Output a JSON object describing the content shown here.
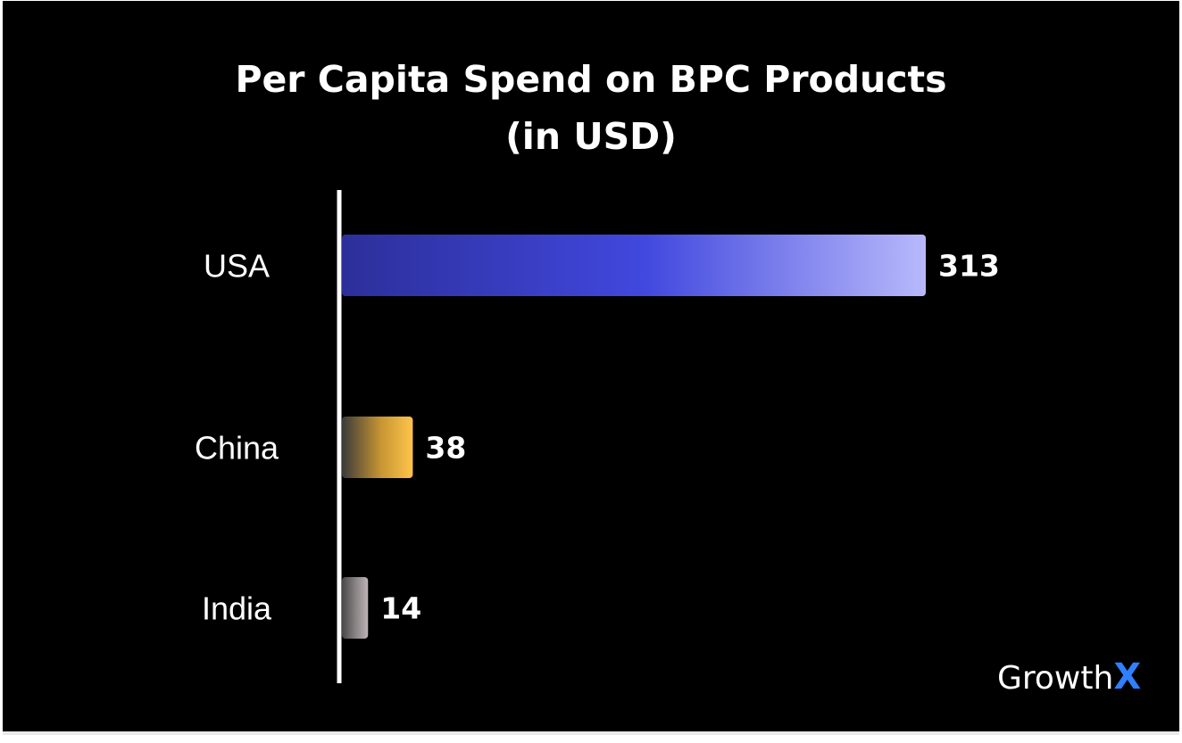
{
  "chart_data": {
    "type": "bar",
    "orientation": "horizontal",
    "title": "Per Capita Spend on BPC Products",
    "subtitle": "(in USD)",
    "categories": [
      "USA",
      "China",
      "India"
    ],
    "values": [
      313,
      38,
      14
    ],
    "xlabel": "",
    "ylabel": "",
    "xlim": [
      0,
      313
    ],
    "grid": false,
    "colors": [
      [
        "#2c2f9a",
        "#4148de",
        "#b8b9fb"
      ],
      [
        "#3a3a3a",
        "#c79533",
        "#ffc54a"
      ],
      [
        "#474747",
        "#8c8688",
        "#bdb4b5"
      ]
    ]
  },
  "brand": {
    "name": "Growth",
    "mark": "X",
    "mark_color": "#2f80ff"
  }
}
